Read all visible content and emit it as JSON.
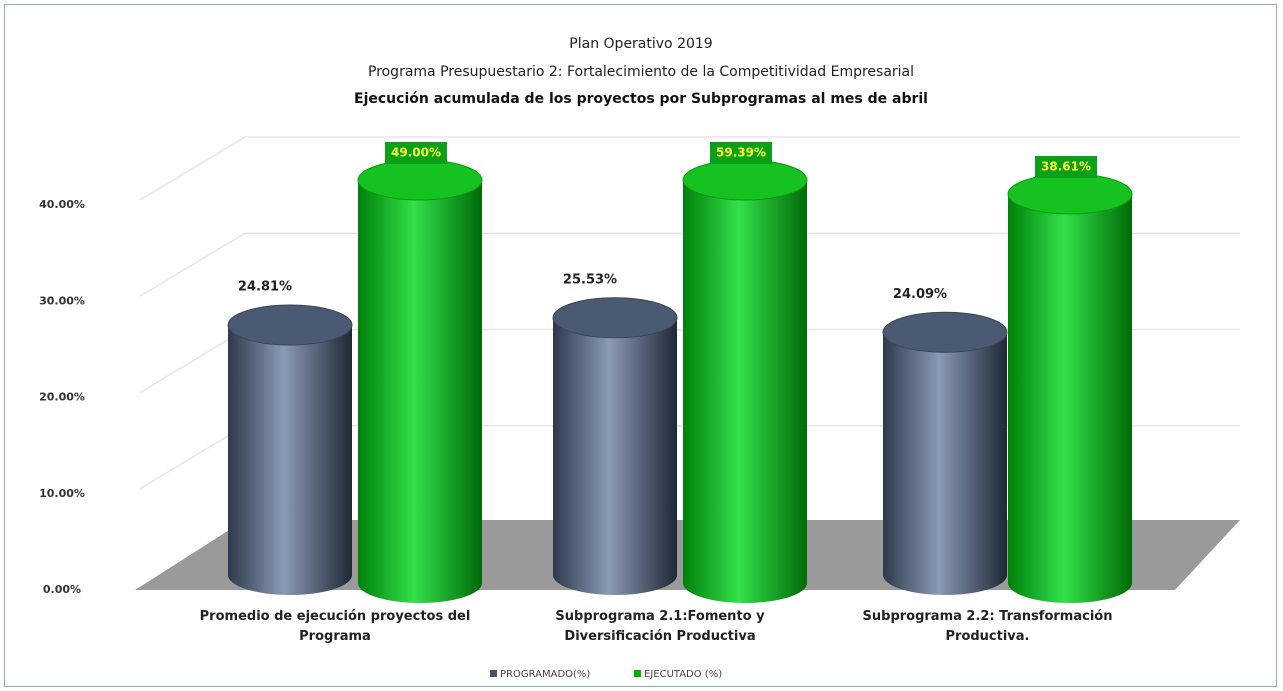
{
  "chart_data": {
    "type": "cylinder_bar",
    "title": "Plan Operativo 2019",
    "subtitle": "Programa Presupuestario 2: Fortalecimiento de la Competitividad Empresarial",
    "subtitle_2": "Ejecución acumulada de los proyectos por Subprogramas al mes de abril",
    "categories": [
      "Promedio de ejecución proyectos del Programa",
      "Subprograma 2.1:Fomento y Diversificación Productiva",
      "Subprograma 2.2: Transformación Productiva."
    ],
    "series": [
      {
        "name": "PROGRAMADO(%)",
        "color": "#44546a",
        "values": [
          24.81,
          25.53,
          24.09
        ],
        "value_labels": [
          "24.81%",
          "25.53%",
          "24.09%"
        ]
      },
      {
        "name": "EJECUTADO (%)",
        "color": "#00b000",
        "values": [
          49.0,
          59.39,
          38.61
        ],
        "value_labels": [
          "49.00%",
          "59.39%",
          "38.61%"
        ]
      }
    ],
    "ylim": [
      0,
      40
    ],
    "yticks": [
      {
        "value": 0,
        "label": "0.00%"
      },
      {
        "value": 10,
        "label": "10.00%"
      },
      {
        "value": 20,
        "label": "20.00%"
      },
      {
        "value": 30,
        "label": "30.00%"
      },
      {
        "value": 40,
        "label": "40.00%"
      }
    ],
    "grid": true,
    "legend": "bottom"
  }
}
